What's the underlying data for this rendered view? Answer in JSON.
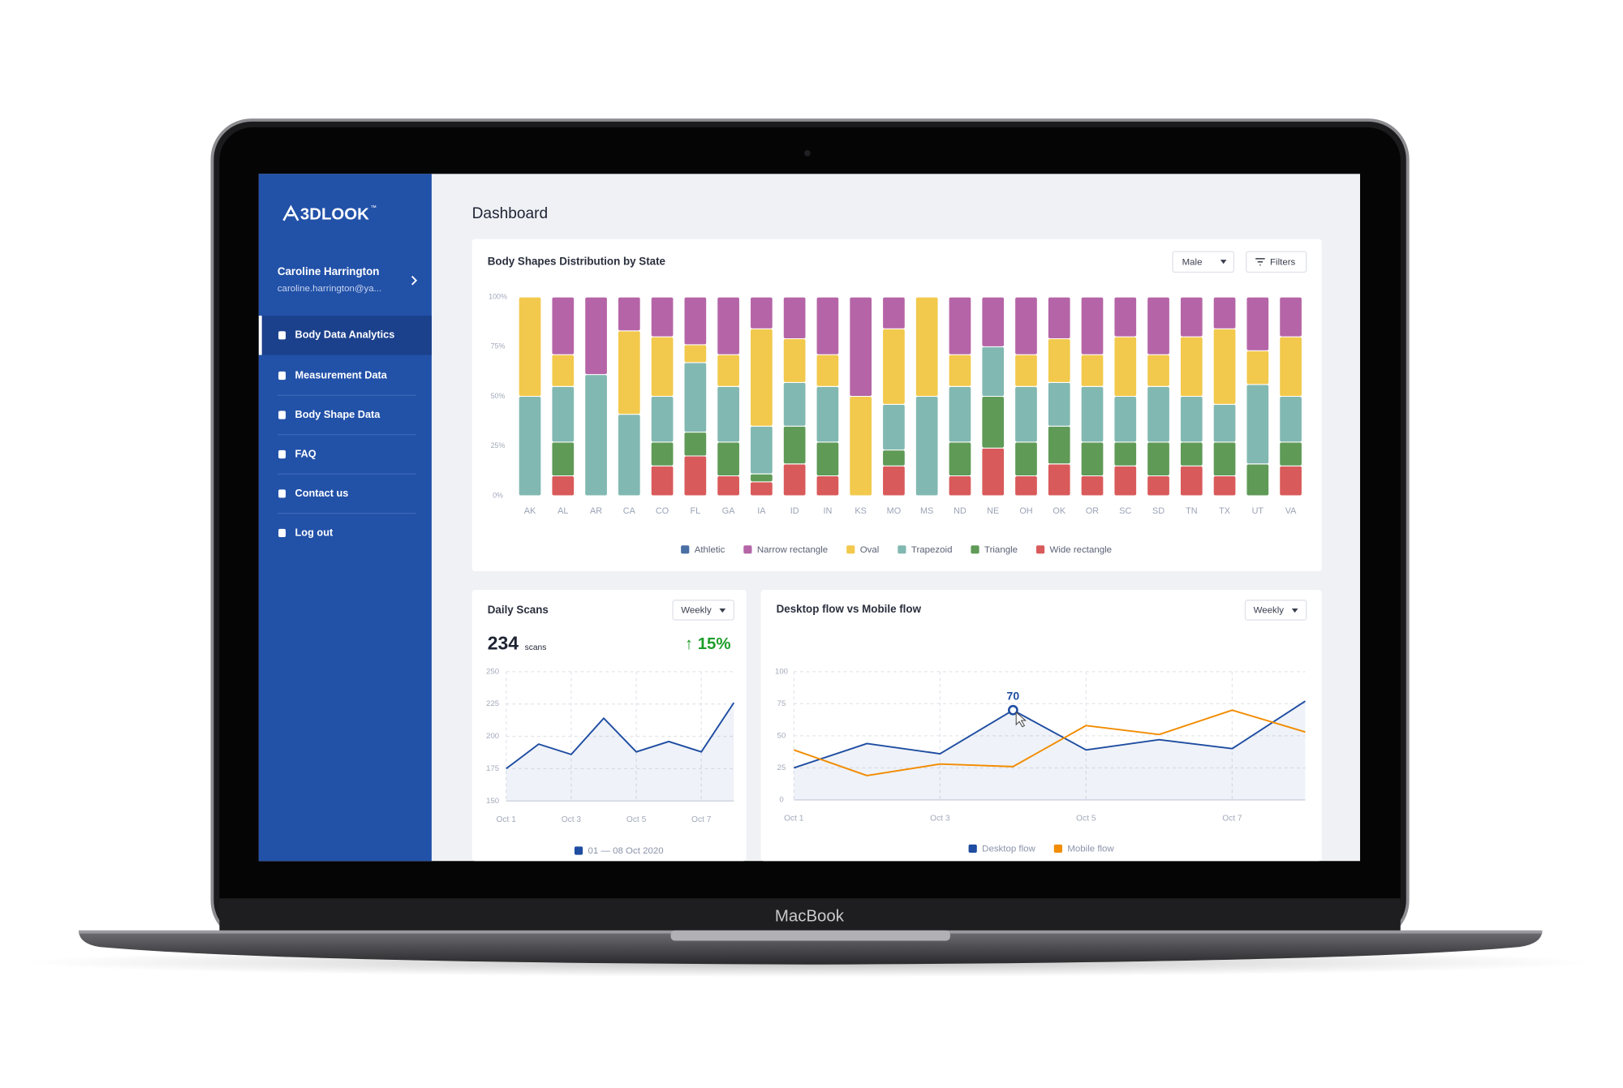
{
  "device": {
    "label": "MacBook"
  },
  "sidebar": {
    "logo": "3DLOOK",
    "logo_tm": "™",
    "user": {
      "name": "Caroline Harrington",
      "email": "caroline.harrington@ya..."
    },
    "menu": [
      {
        "label": "Body Data Analytics",
        "active": true
      },
      {
        "label": "Measurement Data",
        "active": false
      },
      {
        "label": "Body Shape Data",
        "active": false
      },
      {
        "label": "FAQ",
        "active": false
      },
      {
        "label": "Contact us",
        "active": false
      },
      {
        "label": "Log out",
        "active": false
      }
    ]
  },
  "header": {
    "title": "Dashboard"
  },
  "chart_data": [
    {
      "type": "stacked-bar",
      "title": "Body Shapes Distribution by State",
      "controls": [
        "Male",
        "Filters"
      ],
      "categories": [
        "AK",
        "AL",
        "AR",
        "CA",
        "CO",
        "FL",
        "GA",
        "IA",
        "ID",
        "IN",
        "KS",
        "MO",
        "MS",
        "ND",
        "NE",
        "OH",
        "OK",
        "OR",
        "SC",
        "SD",
        "TN",
        "TX",
        "UT",
        "VA"
      ],
      "series": [
        {
          "name": "Athletic",
          "color": "#4a6fa5",
          "values": [
            0,
            0,
            0,
            0,
            0,
            0,
            0,
            0,
            0,
            0,
            0,
            0,
            0,
            0,
            0,
            0,
            0,
            0,
            0,
            0,
            0,
            0,
            0,
            0
          ]
        },
        {
          "name": "Narrow rectangle",
          "color": "#b565a7",
          "values": [
            0,
            29,
            39,
            17,
            20,
            24,
            29,
            16,
            21,
            29,
            50,
            16,
            0,
            29,
            25,
            29,
            21,
            29,
            20,
            29,
            20,
            16,
            27,
            20
          ]
        },
        {
          "name": "Oval",
          "color": "#f2c94c",
          "values": [
            50,
            16,
            0,
            42,
            30,
            9,
            16,
            49,
            22,
            16,
            50,
            38,
            50,
            16,
            0,
            16,
            22,
            16,
            30,
            16,
            30,
            38,
            17,
            30
          ]
        },
        {
          "name": "Trapezoid",
          "color": "#82b8b2",
          "values": [
            50,
            28,
            61,
            41,
            23,
            35,
            28,
            24,
            22,
            28,
            0,
            23,
            50,
            28,
            25,
            28,
            22,
            28,
            23,
            28,
            23,
            19,
            40,
            23
          ]
        },
        {
          "name": "Triangle",
          "color": "#5f9a57",
          "values": [
            0,
            17,
            0,
            0,
            12,
            12,
            17,
            4,
            19,
            17,
            0,
            8,
            0,
            17,
            26,
            17,
            19,
            17,
            12,
            17,
            12,
            17,
            16,
            12
          ]
        },
        {
          "name": "Wide rectangle",
          "color": "#d95a5a",
          "values": [
            0,
            10,
            0,
            0,
            15,
            20,
            10,
            7,
            16,
            10,
            0,
            15,
            0,
            10,
            24,
            10,
            16,
            10,
            15,
            10,
            15,
            10,
            0,
            15
          ]
        }
      ],
      "ylim": [
        0,
        100
      ],
      "yticks": [
        {
          "value": 0,
          "label": "0%"
        },
        {
          "value": 25,
          "label": "25%"
        },
        {
          "value": 50,
          "label": "50%"
        },
        {
          "value": 75,
          "label": "75%"
        },
        {
          "value": 100,
          "label": "100%"
        }
      ],
      "grid": false
    },
    {
      "type": "line",
      "title": "Daily Scans",
      "period": "Weekly",
      "total": 234,
      "total_unit": "scans",
      "change": "↑ 15%",
      "categories": [
        "Oct 1",
        null,
        "Oct 3",
        null,
        "Oct 5",
        null,
        "Oct 7",
        null
      ],
      "series": [
        {
          "name": "01 — 08 Oct 2020",
          "color": "#1e4da1",
          "area": true,
          "values": [
            175,
            194,
            186,
            214,
            188,
            196,
            188,
            226
          ]
        }
      ],
      "ylim": [
        150,
        250
      ],
      "yticks": [
        150,
        175,
        200,
        225,
        250
      ],
      "grid": true
    },
    {
      "type": "line",
      "title": "Desktop flow vs Mobile flow",
      "period": "Weekly",
      "categories": [
        "Oct 1",
        null,
        "Oct 3",
        null,
        "Oct 5",
        null,
        "Oct 7",
        null
      ],
      "series": [
        {
          "name": "Desktop flow",
          "color": "#1e4da1",
          "area": true,
          "values": [
            25,
            44,
            36,
            70,
            39,
            47,
            40,
            77
          ]
        },
        {
          "name": "Mobile flow",
          "color": "#f28c00",
          "area": false,
          "values": [
            39,
            19,
            28,
            26,
            58,
            51,
            70,
            53
          ]
        }
      ],
      "ylim": [
        0,
        100
      ],
      "yticks": [
        0,
        25,
        50,
        75,
        100
      ],
      "grid": true
    }
  ]
}
